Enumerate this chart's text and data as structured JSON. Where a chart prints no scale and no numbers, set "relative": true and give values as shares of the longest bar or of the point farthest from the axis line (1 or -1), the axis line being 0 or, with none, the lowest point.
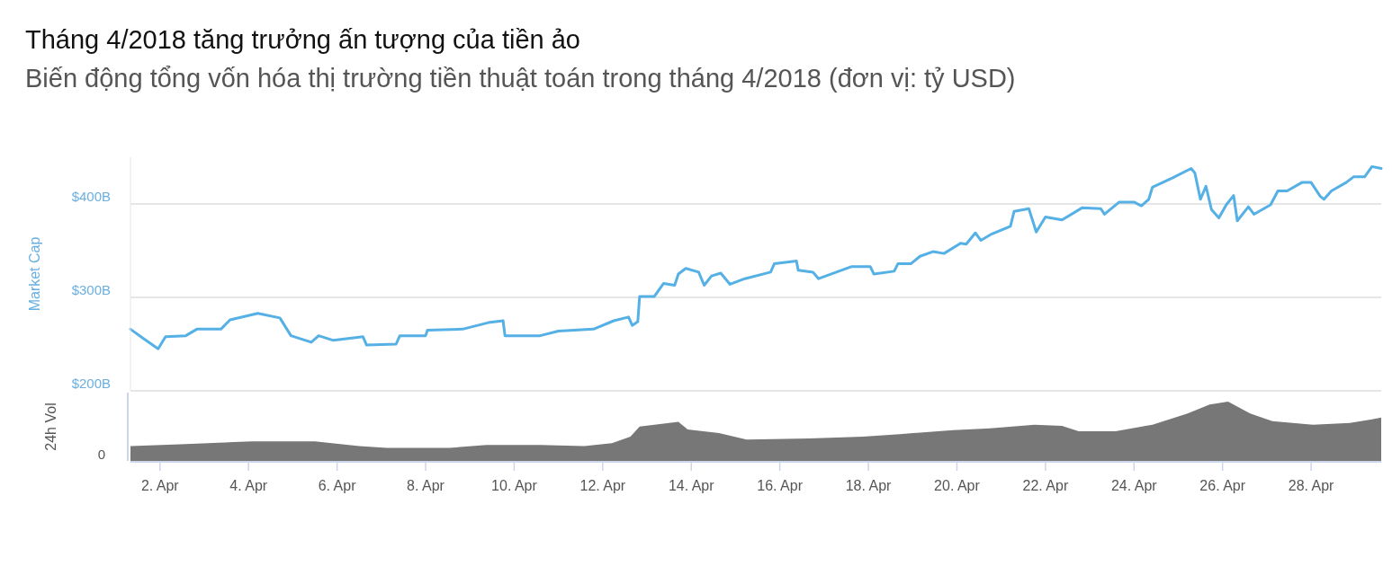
{
  "chart_data": [
    {
      "type": "line",
      "title": "Tháng 4/2018 tăng trưởng ấn tượng của tiền ảo",
      "subtitle": "Biến động tổng vốn hóa thị trường tiền thuật toán trong tháng 4/2018 (đơn vị: tỷ USD)",
      "ylabel": "Market Cap",
      "x": [
        "2018-04-01T08:00",
        "2018-04-01T15:00",
        "2018-04-01T23:00",
        "2018-04-02T03:00",
        "2018-04-02T14:00",
        "2018-04-02T20:00",
        "2018-04-03T09:00",
        "2018-04-03T14:00",
        "2018-04-04T05:00",
        "2018-04-04T17:00",
        "2018-04-04T23:00",
        "2018-04-05T10:00",
        "2018-04-05T14:00",
        "2018-04-05T22:00",
        "2018-04-06T14:00",
        "2018-04-06T16:00",
        "2018-04-07T08:00",
        "2018-04-07T10:00",
        "2018-04-08T00:00",
        "2018-04-08T01:00",
        "2018-04-08T20:00",
        "2018-04-09T10:00",
        "2018-04-09T18:00",
        "2018-04-09T19:00",
        "2018-04-10T14:00",
        "2018-04-11T00:00",
        "2018-04-11T19:00",
        "2018-04-12T06:00",
        "2018-04-12T14:00",
        "2018-04-12T16:00",
        "2018-04-12T19:00",
        "2018-04-12T20:00",
        "2018-04-13T04:00",
        "2018-04-13T09:00",
        "2018-04-13T15:00",
        "2018-04-13T17:00",
        "2018-04-13T21:00",
        "2018-04-14T04:00",
        "2018-04-14T07:00",
        "2018-04-14T11:00",
        "2018-04-14T16:00",
        "2018-04-14T21:00",
        "2018-04-15T05:00",
        "2018-04-15T19:00",
        "2018-04-15T21:00",
        "2018-04-16T09:00",
        "2018-04-16T10:00",
        "2018-04-16T18:00",
        "2018-04-16T21:00",
        "2018-04-17T15:00",
        "2018-04-18T01:00",
        "2018-04-18T03:00",
        "2018-04-18T14:00",
        "2018-04-18T16:00",
        "2018-04-18T23:00",
        "2018-04-19T04:00",
        "2018-04-19T11:00",
        "2018-04-19T17:00",
        "2018-04-20T02:00",
        "2018-04-20T05:00",
        "2018-04-20T10:00",
        "2018-04-20T13:00",
        "2018-04-20T19:00",
        "2018-04-21T05:00",
        "2018-04-21T07:00",
        "2018-04-21T15:00",
        "2018-04-21T19:00",
        "2018-04-22T00:00",
        "2018-04-22T09:00",
        "2018-04-22T20:00",
        "2018-04-23T06:00",
        "2018-04-23T08:00",
        "2018-04-23T16:00",
        "2018-04-24T00:00",
        "2018-04-24T04:00",
        "2018-04-24T08:00",
        "2018-04-24T10:00",
        "2018-04-24T21:00",
        "2018-04-25T07:00",
        "2018-04-25T09:00",
        "2018-04-25T12:00",
        "2018-04-25T15:00",
        "2018-04-25T18:00",
        "2018-04-25T22:00",
        "2018-04-26T02:00",
        "2018-04-26T06:00",
        "2018-04-26T08:00",
        "2018-04-26T14:00",
        "2018-04-26T17:00",
        "2018-04-27T02:00",
        "2018-04-27T06:00",
        "2018-04-27T11:00",
        "2018-04-27T19:00",
        "2018-04-28T00:00",
        "2018-04-28T05:00",
        "2018-04-28T07:00",
        "2018-04-28T11:00",
        "2018-04-28T19:00",
        "2018-04-28T23:00",
        "2018-04-29T05:00",
        "2018-04-29T09:00",
        "2018-04-29T14:00"
      ],
      "series": [
        {
          "color": "#55b0e6",
          "values": [
            266,
            256,
            245,
            258,
            259,
            266,
            266,
            276,
            283,
            278,
            259,
            252,
            259,
            254,
            258,
            249,
            250,
            259,
            259,
            265,
            266,
            273,
            275,
            259,
            259,
            264,
            266,
            275,
            279,
            270,
            274,
            301,
            301,
            315,
            313,
            325,
            331,
            327,
            313,
            323,
            326,
            314,
            320,
            327,
            336,
            339,
            329,
            327,
            320,
            333,
            333,
            325,
            328,
            336,
            336,
            344,
            349,
            347,
            358,
            357,
            369,
            361,
            368,
            376,
            392,
            395,
            370,
            386,
            383,
            396,
            395,
            389,
            402,
            402,
            398,
            405,
            418,
            428,
            438,
            433,
            405,
            419,
            394,
            385,
            399,
            409,
            382,
            397,
            389,
            399,
            414,
            414,
            423,
            423,
            408,
            405,
            414,
            423,
            429,
            429,
            440,
            438
          ]
        }
      ],
      "xlim": [
        "2018-04-01T08:00",
        "2018-04-29T14:00"
      ],
      "yticks": [
        {
          "value": 200,
          "label": "$200B"
        },
        {
          "value": 300,
          "label": "$300B"
        },
        {
          "value": 400,
          "label": "$400B"
        }
      ],
      "ylim": [
        200,
        450
      ],
      "grid": "y",
      "tick_labels": "y"
    },
    {
      "type": "area",
      "ylabel": "24h Vol",
      "relative": true,
      "annotations": [
        "0"
      ],
      "x": [
        "2018-04-01T08:00",
        "2018-04-02T11:00",
        "2018-04-03T11:00",
        "2018-04-04T02:00",
        "2018-04-05T12:00",
        "2018-04-06T12:00",
        "2018-04-07T03:00",
        "2018-04-08T13:00",
        "2018-04-09T09:00",
        "2018-04-10T14:00",
        "2018-04-11T14:00",
        "2018-04-12T05:00",
        "2018-04-12T15:00",
        "2018-04-12T20:00",
        "2018-04-13T17:00",
        "2018-04-13T22:00",
        "2018-04-14T15:00",
        "2018-04-15T06:00",
        "2018-04-16T16:00",
        "2018-04-17T21:00",
        "2018-04-18T17:00",
        "2018-04-19T22:00",
        "2018-04-20T18:00",
        "2018-04-21T18:00",
        "2018-04-22T09:00",
        "2018-04-22T18:00",
        "2018-04-23T14:00",
        "2018-04-24T10:00",
        "2018-04-25T05:00",
        "2018-04-25T17:00",
        "2018-04-26T03:00",
        "2018-04-26T15:00",
        "2018-04-27T03:00",
        "2018-04-28T01:00",
        "2018-04-28T21:00",
        "2018-04-29T09:00",
        "2018-04-29T14:00"
      ],
      "series": [
        {
          "color": "#777777",
          "values": [
            0.25,
            0.28,
            0.31,
            0.33,
            0.33,
            0.25,
            0.22,
            0.22,
            0.27,
            0.27,
            0.25,
            0.3,
            0.41,
            0.58,
            0.66,
            0.53,
            0.47,
            0.36,
            0.38,
            0.41,
            0.45,
            0.52,
            0.55,
            0.61,
            0.59,
            0.5,
            0.5,
            0.61,
            0.8,
            0.95,
            1,
            0.8,
            0.67,
            0.61,
            0.64,
            0.7,
            0.73
          ]
        }
      ],
      "xlim": [
        "2018-04-01T08:00",
        "2018-04-29T14:00"
      ],
      "xticks": [
        {
          "value": "2018-04-02",
          "label": "2. Apr"
        },
        {
          "value": "2018-04-04",
          "label": "4. Apr"
        },
        {
          "value": "2018-04-06",
          "label": "6. Apr"
        },
        {
          "value": "2018-04-08",
          "label": "8. Apr"
        },
        {
          "value": "2018-04-10",
          "label": "10. Apr"
        },
        {
          "value": "2018-04-12",
          "label": "12. Apr"
        },
        {
          "value": "2018-04-14",
          "label": "14. Apr"
        },
        {
          "value": "2018-04-16",
          "label": "16. Apr"
        },
        {
          "value": "2018-04-18",
          "label": "18. Apr"
        },
        {
          "value": "2018-04-20",
          "label": "20. Apr"
        },
        {
          "value": "2018-04-22",
          "label": "22. Apr"
        },
        {
          "value": "2018-04-24",
          "label": "24. Apr"
        },
        {
          "value": "2018-04-26",
          "label": "26. Apr"
        },
        {
          "value": "2018-04-28",
          "label": "28. Apr"
        }
      ]
    }
  ]
}
